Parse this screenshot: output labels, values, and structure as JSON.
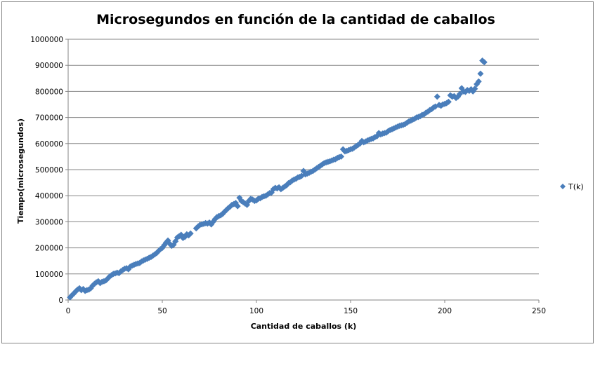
{
  "chart_data": {
    "type": "scatter",
    "title": "Microsegundos en función de la cantidad de caballos",
    "xlabel": "Cantidad de caballos (k)",
    "ylabel": "Tiempo(microsegundos)",
    "xlim": [
      0,
      250
    ],
    "ylim": [
      0,
      1000000
    ],
    "xticks": [
      0,
      50,
      100,
      150,
      200,
      250
    ],
    "yticks": [
      0,
      100000,
      200000,
      300000,
      400000,
      500000,
      600000,
      700000,
      800000,
      900000,
      1000000
    ],
    "grid": "horizontal",
    "legend_position": "right",
    "marker": "diamond",
    "color": "#4a7ebb",
    "series": [
      {
        "name": "T(k)",
        "points": [
          [
            1,
            10000
          ],
          [
            2,
            18000
          ],
          [
            3,
            25000
          ],
          [
            4,
            33000
          ],
          [
            5,
            40000
          ],
          [
            6,
            45000
          ],
          [
            7,
            38000
          ],
          [
            8,
            42000
          ],
          [
            9,
            35000
          ],
          [
            10,
            38000
          ],
          [
            11,
            40000
          ],
          [
            12,
            45000
          ],
          [
            13,
            55000
          ],
          [
            14,
            62000
          ],
          [
            15,
            68000
          ],
          [
            16,
            72000
          ],
          [
            17,
            65000
          ],
          [
            18,
            70000
          ],
          [
            19,
            72000
          ],
          [
            20,
            75000
          ],
          [
            21,
            82000
          ],
          [
            22,
            90000
          ],
          [
            23,
            95000
          ],
          [
            24,
            100000
          ],
          [
            25,
            102000
          ],
          [
            26,
            105000
          ],
          [
            27,
            103000
          ],
          [
            28,
            110000
          ],
          [
            29,
            115000
          ],
          [
            30,
            120000
          ],
          [
            31,
            122000
          ],
          [
            32,
            118000
          ],
          [
            33,
            128000
          ],
          [
            34,
            132000
          ],
          [
            35,
            135000
          ],
          [
            36,
            138000
          ],
          [
            37,
            140000
          ],
          [
            38,
            142000
          ],
          [
            39,
            148000
          ],
          [
            40,
            152000
          ],
          [
            41,
            155000
          ],
          [
            42,
            158000
          ],
          [
            43,
            162000
          ],
          [
            44,
            165000
          ],
          [
            45,
            170000
          ],
          [
            46,
            175000
          ],
          [
            47,
            180000
          ],
          [
            48,
            188000
          ],
          [
            49,
            195000
          ],
          [
            50,
            200000
          ],
          [
            51,
            210000
          ],
          [
            52,
            220000
          ],
          [
            53,
            228000
          ],
          [
            54,
            215000
          ],
          [
            55,
            208000
          ],
          [
            56,
            212000
          ],
          [
            57,
            225000
          ],
          [
            58,
            240000
          ],
          [
            59,
            245000
          ],
          [
            60,
            250000
          ],
          [
            61,
            238000
          ],
          [
            62,
            242000
          ],
          [
            63,
            252000
          ],
          [
            64,
            248000
          ],
          [
            65,
            255000
          ],
          [
            68,
            275000
          ],
          [
            69,
            282000
          ],
          [
            70,
            288000
          ],
          [
            71,
            290000
          ],
          [
            72,
            292000
          ],
          [
            73,
            295000
          ],
          [
            74,
            293000
          ],
          [
            75,
            297000
          ],
          [
            76,
            290000
          ],
          [
            77,
            300000
          ],
          [
            78,
            310000
          ],
          [
            79,
            318000
          ],
          [
            80,
            322000
          ],
          [
            81,
            325000
          ],
          [
            82,
            330000
          ],
          [
            83,
            338000
          ],
          [
            84,
            345000
          ],
          [
            85,
            352000
          ],
          [
            86,
            358000
          ],
          [
            87,
            365000
          ],
          [
            88,
            368000
          ],
          [
            89,
            372000
          ],
          [
            90,
            360000
          ],
          [
            91,
            392000
          ],
          [
            92,
            380000
          ],
          [
            93,
            375000
          ],
          [
            94,
            370000
          ],
          [
            95,
            365000
          ],
          [
            96,
            380000
          ],
          [
            97,
            388000
          ],
          [
            98,
            385000
          ],
          [
            99,
            380000
          ],
          [
            100,
            382000
          ],
          [
            101,
            388000
          ],
          [
            102,
            390000
          ],
          [
            103,
            395000
          ],
          [
            104,
            398000
          ],
          [
            105,
            400000
          ],
          [
            106,
            405000
          ],
          [
            107,
            410000
          ],
          [
            108,
            412000
          ],
          [
            109,
            425000
          ],
          [
            110,
            430000
          ],
          [
            111,
            428000
          ],
          [
            112,
            432000
          ],
          [
            113,
            425000
          ],
          [
            114,
            430000
          ],
          [
            115,
            435000
          ],
          [
            116,
            440000
          ],
          [
            117,
            448000
          ],
          [
            118,
            452000
          ],
          [
            119,
            458000
          ],
          [
            120,
            462000
          ],
          [
            121,
            465000
          ],
          [
            122,
            470000
          ],
          [
            123,
            472000
          ],
          [
            124,
            476000
          ],
          [
            125,
            495000
          ],
          [
            126,
            482000
          ],
          [
            127,
            485000
          ],
          [
            128,
            488000
          ],
          [
            129,
            492000
          ],
          [
            130,
            495000
          ],
          [
            131,
            500000
          ],
          [
            132,
            505000
          ],
          [
            133,
            510000
          ],
          [
            134,
            515000
          ],
          [
            135,
            520000
          ],
          [
            136,
            525000
          ],
          [
            137,
            528000
          ],
          [
            138,
            530000
          ],
          [
            139,
            532000
          ],
          [
            140,
            535000
          ],
          [
            141,
            538000
          ],
          [
            142,
            540000
          ],
          [
            143,
            545000
          ],
          [
            144,
            548000
          ],
          [
            145,
            550000
          ],
          [
            146,
            578000
          ],
          [
            147,
            570000
          ],
          [
            148,
            572000
          ],
          [
            149,
            575000
          ],
          [
            150,
            578000
          ],
          [
            151,
            580000
          ],
          [
            152,
            585000
          ],
          [
            153,
            590000
          ],
          [
            154,
            595000
          ],
          [
            155,
            600000
          ],
          [
            156,
            610000
          ],
          [
            157,
            605000
          ],
          [
            158,
            608000
          ],
          [
            159,
            612000
          ],
          [
            160,
            615000
          ],
          [
            161,
            618000
          ],
          [
            162,
            620000
          ],
          [
            163,
            625000
          ],
          [
            164,
            628000
          ],
          [
            165,
            640000
          ],
          [
            166,
            635000
          ],
          [
            167,
            638000
          ],
          [
            168,
            640000
          ],
          [
            169,
            642000
          ],
          [
            170,
            648000
          ],
          [
            171,
            652000
          ],
          [
            172,
            655000
          ],
          [
            173,
            658000
          ],
          [
            174,
            662000
          ],
          [
            175,
            665000
          ],
          [
            176,
            668000
          ],
          [
            177,
            670000
          ],
          [
            178,
            672000
          ],
          [
            179,
            675000
          ],
          [
            180,
            680000
          ],
          [
            181,
            685000
          ],
          [
            182,
            688000
          ],
          [
            183,
            692000
          ],
          [
            184,
            695000
          ],
          [
            185,
            700000
          ],
          [
            186,
            702000
          ],
          [
            187,
            705000
          ],
          [
            188,
            710000
          ],
          [
            189,
            712000
          ],
          [
            190,
            718000
          ],
          [
            191,
            722000
          ],
          [
            192,
            728000
          ],
          [
            193,
            732000
          ],
          [
            194,
            738000
          ],
          [
            195,
            742000
          ],
          [
            196,
            780000
          ],
          [
            197,
            748000
          ],
          [
            198,
            745000
          ],
          [
            199,
            750000
          ],
          [
            200,
            752000
          ],
          [
            201,
            755000
          ],
          [
            202,
            760000
          ],
          [
            203,
            785000
          ],
          [
            204,
            780000
          ],
          [
            205,
            782000
          ],
          [
            206,
            775000
          ],
          [
            207,
            780000
          ],
          [
            208,
            790000
          ],
          [
            209,
            812000
          ],
          [
            210,
            800000
          ],
          [
            211,
            798000
          ],
          [
            212,
            805000
          ],
          [
            213,
            802000
          ],
          [
            214,
            808000
          ],
          [
            215,
            800000
          ],
          [
            216,
            810000
          ],
          [
            217,
            828000
          ],
          [
            218,
            838000
          ],
          [
            219,
            868000
          ],
          [
            220,
            918000
          ],
          [
            221,
            912000
          ]
        ]
      }
    ]
  }
}
